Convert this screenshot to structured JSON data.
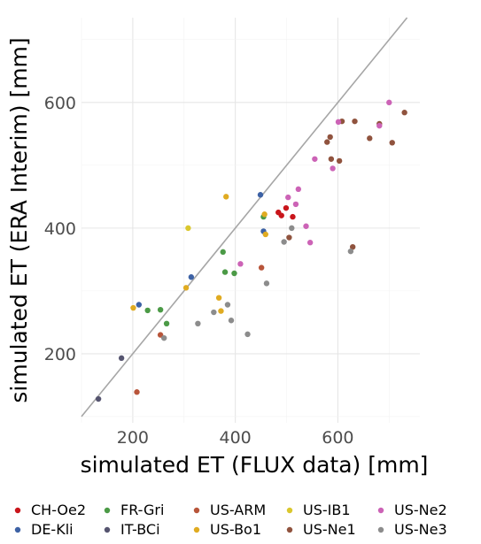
{
  "chart_data": {
    "type": "scatter",
    "xlabel": "simulated ET (FLUX data) [mm]",
    "ylabel": "simulated ET (ERA Interim) [mm]",
    "xlim": [
      100,
      760
    ],
    "ylim": [
      90,
      735
    ],
    "x_ticks": [
      200,
      400,
      600
    ],
    "y_ticks": [
      200,
      400,
      600
    ],
    "grid": true,
    "legend_position": "bottom",
    "reference_line": "1:1",
    "series": [
      {
        "name": "CH-Oe2",
        "color": "#c9151b",
        "points": [
          [
            484,
            425
          ],
          [
            490,
            420
          ],
          [
            499,
            432
          ],
          [
            512,
            418
          ]
        ]
      },
      {
        "name": "DE-Kli",
        "color": "#3d62a5",
        "points": [
          [
            212,
            278
          ],
          [
            314,
            322
          ],
          [
            449,
            453
          ],
          [
            455,
            395
          ]
        ]
      },
      {
        "name": "FR-Gri",
        "color": "#4b9a46",
        "points": [
          [
            229,
            269
          ],
          [
            254,
            270
          ],
          [
            266,
            248
          ],
          [
            376,
            362
          ],
          [
            380,
            330
          ],
          [
            398,
            328
          ],
          [
            455,
            418
          ]
        ]
      },
      {
        "name": "IT-BCi",
        "color": "#55546f",
        "points": [
          [
            133,
            128
          ],
          [
            178,
            193
          ]
        ]
      },
      {
        "name": "US-ARM",
        "color": "#b8553a",
        "points": [
          [
            208,
            139
          ],
          [
            254,
            230
          ],
          [
            451,
            337
          ]
        ]
      },
      {
        "name": "US-Bo1",
        "color": "#e0ab21",
        "points": [
          [
            201,
            273
          ],
          [
            304,
            305
          ],
          [
            368,
            289
          ],
          [
            372,
            268
          ],
          [
            382,
            450
          ],
          [
            457,
            422
          ],
          [
            459,
            390
          ]
        ]
      },
      {
        "name": "US-IB1",
        "color": "#dac72d",
        "points": [
          [
            308,
            400
          ]
        ]
      },
      {
        "name": "US-Ne1",
        "color": "#90533e",
        "points": [
          [
            505,
            385
          ],
          [
            579,
            537
          ],
          [
            585,
            545
          ],
          [
            587,
            510
          ],
          [
            603,
            507
          ],
          [
            608,
            570
          ],
          [
            629,
            370
          ],
          [
            633,
            570
          ],
          [
            662,
            543
          ],
          [
            681,
            566
          ],
          [
            706,
            536
          ],
          [
            730,
            584
          ]
        ]
      },
      {
        "name": "US-Ne2",
        "color": "#cc63b6",
        "points": [
          [
            410,
            343
          ],
          [
            503,
            449
          ],
          [
            518,
            438
          ],
          [
            523,
            462
          ],
          [
            538,
            403
          ],
          [
            546,
            377
          ],
          [
            555,
            510
          ],
          [
            590,
            495
          ],
          [
            601,
            569
          ],
          [
            681,
            563
          ],
          [
            700,
            600
          ]
        ]
      },
      {
        "name": "US-Ne3",
        "color": "#8c8c8c",
        "points": [
          [
            261,
            225
          ],
          [
            327,
            248
          ],
          [
            358,
            266
          ],
          [
            385,
            278
          ],
          [
            392,
            253
          ],
          [
            424,
            231
          ],
          [
            461,
            312
          ],
          [
            495,
            378
          ],
          [
            510,
            400
          ],
          [
            625,
            363
          ]
        ]
      }
    ]
  }
}
